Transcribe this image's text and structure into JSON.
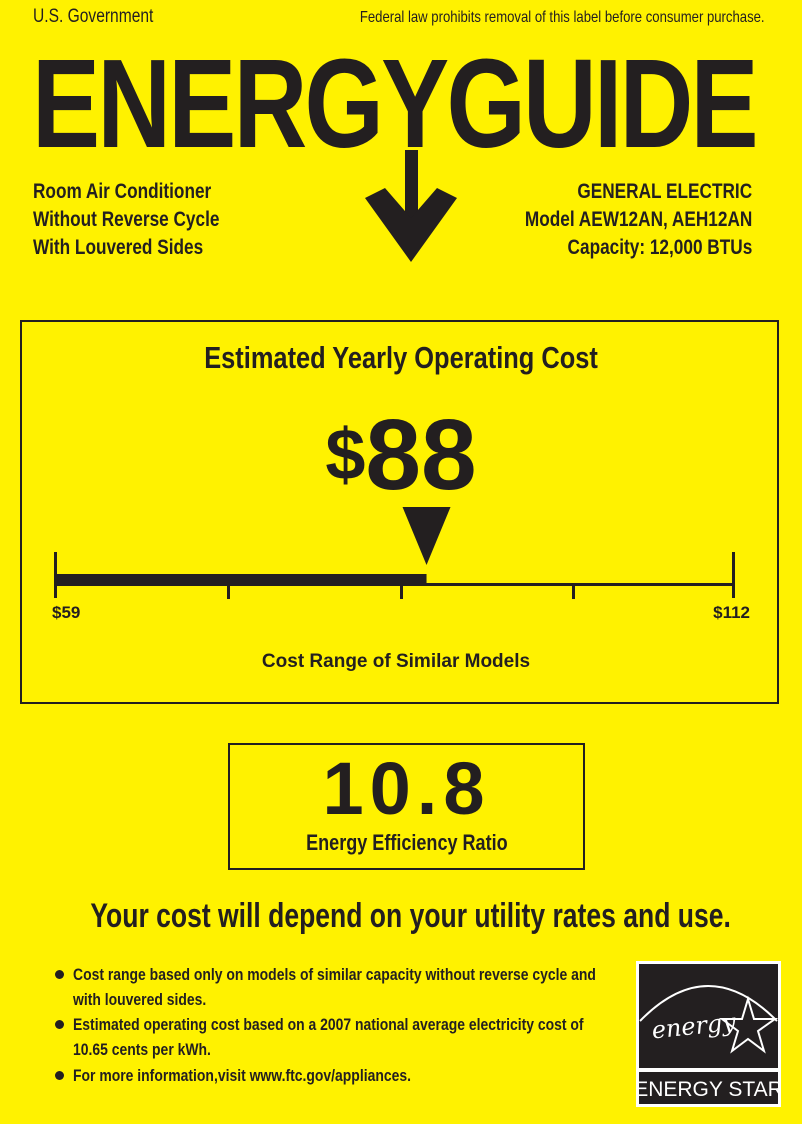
{
  "header": {
    "government": "U.S. Government",
    "law_notice": "Federal law prohibits removal of this label before consumer purchase.",
    "title": "ENERGYGUIDE"
  },
  "appliance": {
    "lines": [
      "Room Air Conditioner",
      "Without Reverse Cycle",
      "With Louvered Sides"
    ]
  },
  "manufacturer": {
    "brand": "GENERAL ELECTRIC",
    "model": "Model AEW12AN, AEH12AN",
    "capacity": "Capacity: 12,000 BTUs"
  },
  "cost": {
    "title": "Estimated Yearly Operating Cost",
    "currency": "$",
    "value": "88",
    "value_number": 88,
    "range_min_label": "$59",
    "range_max_label": "$112",
    "range_min": 59,
    "range_max": 112,
    "range_label": "Cost Range of Similar Models"
  },
  "efficiency": {
    "value": "10.8",
    "label": "Energy Efficiency Ratio"
  },
  "notice": "Your cost will depend on your utility rates and use.",
  "bullets": [
    "Cost range based only on models of similar capacity without reverse cycle and with louvered sides.",
    "Estimated operating cost based on a 2007 national average electricity cost of 10.65 cents per kWh.",
    "For more information,visit www.ftc.gov/appliances."
  ],
  "logo": {
    "script": "energy",
    "label": "ENERGY STAR"
  },
  "colors": {
    "background": "#fff200",
    "ink": "#231f20"
  }
}
